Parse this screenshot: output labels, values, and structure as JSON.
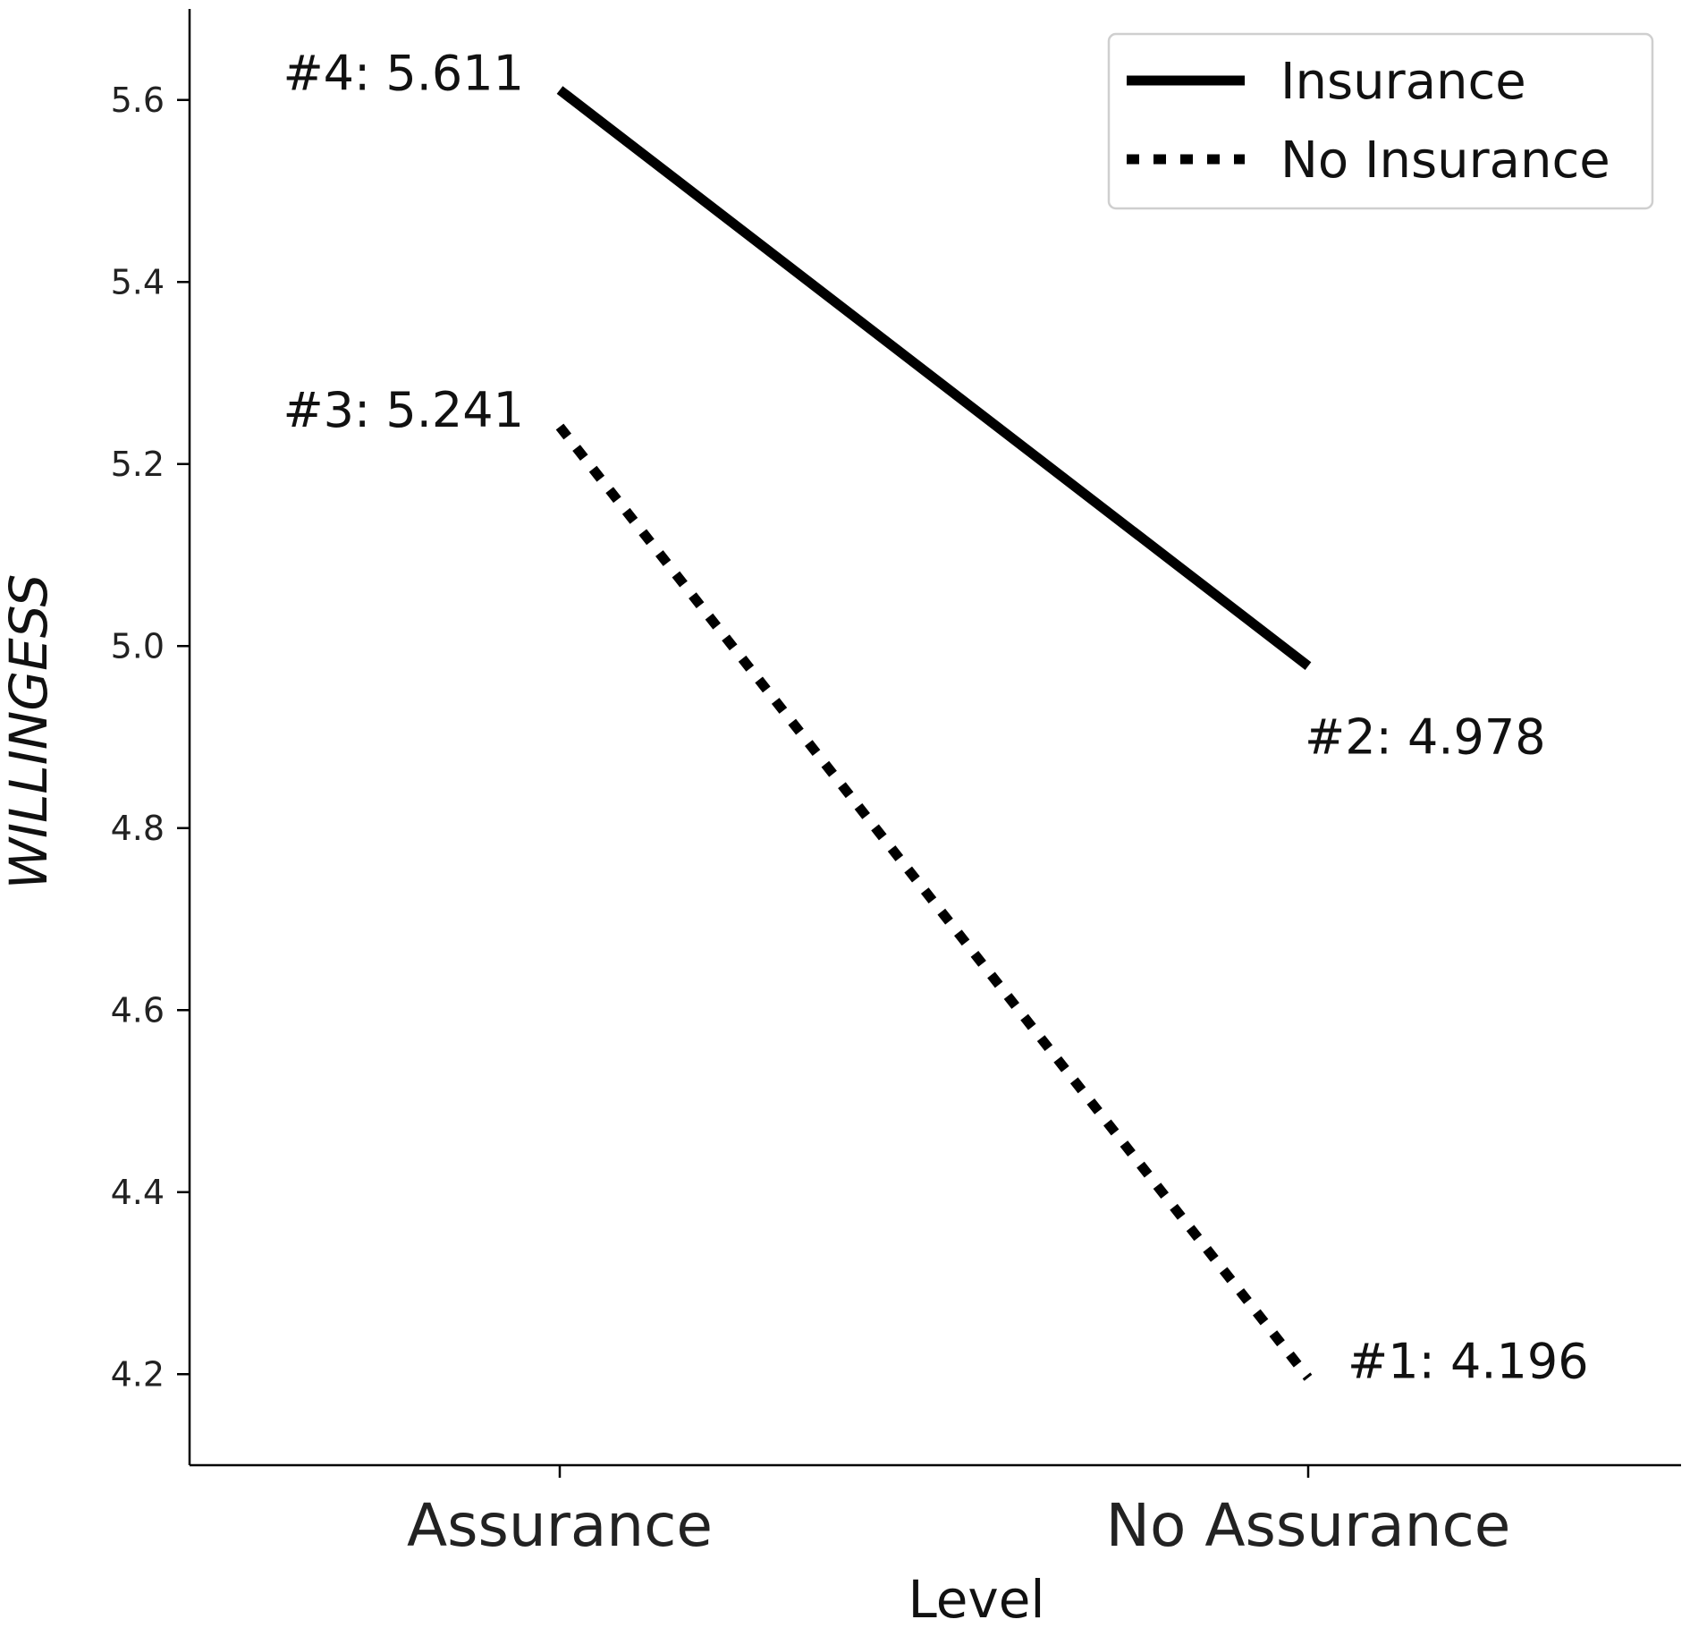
{
  "chart_data": {
    "type": "line",
    "categories": [
      "Assurance",
      "No Assurance"
    ],
    "xlabel": "Level",
    "ylabel": "WILLINGESS",
    "ylim": [
      4.1,
      5.7
    ],
    "yticks": [
      4.2,
      4.4,
      4.6,
      4.8,
      5.0,
      5.2,
      5.4,
      5.6
    ],
    "ytick_labels": [
      "4.2",
      "4.4",
      "4.6",
      "4.8",
      "5.0",
      "5.2",
      "5.4",
      "5.6"
    ],
    "grid": false,
    "legend_position": "top-right",
    "series": [
      {
        "name": "Insurance",
        "style": "solid",
        "color": "#000000",
        "values": [
          5.611,
          4.978
        ]
      },
      {
        "name": "No Insurance",
        "style": "dotted",
        "color": "#000000",
        "values": [
          5.241,
          4.196
        ]
      }
    ],
    "annotations": [
      {
        "text": "#4: 5.611",
        "series": 0,
        "index": 0,
        "side": "left"
      },
      {
        "text": "#2: 4.978",
        "series": 0,
        "index": 1,
        "side": "below-right"
      },
      {
        "text": "#3: 5.241",
        "series": 1,
        "index": 0,
        "side": "left"
      },
      {
        "text": "#1: 4.196",
        "series": 1,
        "index": 1,
        "side": "right"
      }
    ]
  }
}
